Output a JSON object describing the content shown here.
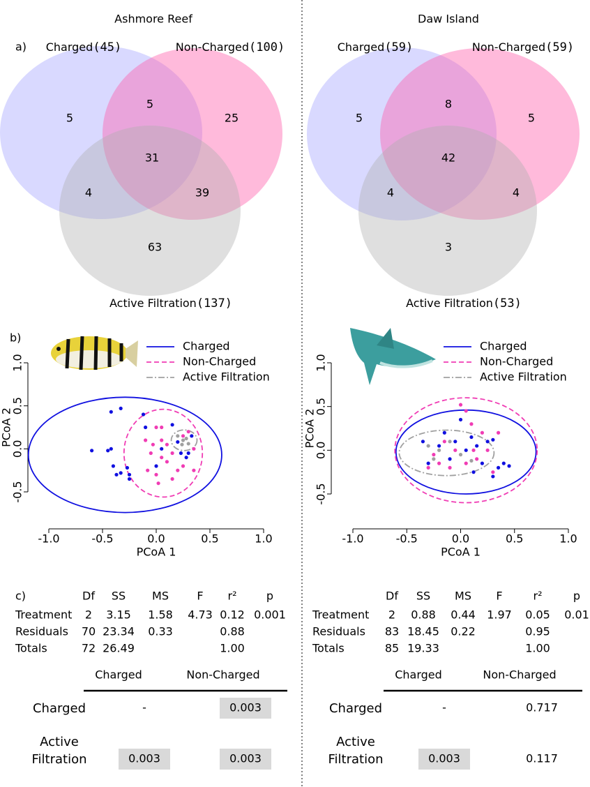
{
  "panel_labels": [
    "a)",
    "b)",
    "c)"
  ],
  "sites": [
    {
      "title": "Ashmore Reef",
      "venn": {
        "sets": [
          {
            "name": "Charged",
            "count": "(45)",
            "color": "rgba(160,160,255,0.40)"
          },
          {
            "name": "Non-Charged",
            "count": "(100)",
            "color": "rgba(255,90,170,0.42)"
          },
          {
            "name": "Active Filtration",
            "count": "(137)",
            "color": "rgba(175,175,175,0.40)"
          }
        ],
        "regions": [
          5,
          5,
          25,
          31,
          4,
          39,
          63
        ]
      },
      "pcoa": {
        "type": "scatter",
        "xlabel": "PCoA 1",
        "ylabel": "PCoA 2",
        "xlim": [
          -1,
          1
        ],
        "ylim": [
          -0.5,
          1
        ],
        "xticks": [
          {
            "value": -1,
            "label": "-1.0"
          },
          -0.5,
          {
            "value": 0,
            "label": "0.0"
          },
          0.5,
          {
            "value": 1,
            "label": "1.0"
          }
        ],
        "yticks": [
          -0.5,
          {
            "value": 0,
            "label": "0.0"
          },
          0.5,
          {
            "value": 1,
            "label": "1.0"
          }
        ],
        "legend": "top-right",
        "series": [
          {
            "name": "Charged",
            "color": "#1010e0",
            "dash": "solid",
            "x": [
              -0.6,
              -0.45,
              -0.42,
              -0.42,
              -0.33,
              -0.4,
              -0.37,
              -0.33,
              -0.27,
              -0.25,
              -0.25,
              -0.12,
              -0.1,
              0.05,
              0.15,
              0.2,
              0.23,
              0.28,
              0.3,
              0.33,
              0.0
            ],
            "y": [
              -0.02,
              -0.02,
              0.0,
              0.43,
              0.47,
              -0.2,
              -0.3,
              -0.28,
              -0.22,
              -0.3,
              -0.35,
              0.4,
              0.25,
              0.0,
              0.28,
              0.08,
              -0.05,
              -0.1,
              -0.05,
              0.15,
              -0.2
            ],
            "ellipse": {
              "center": [
                -0.29,
                -0.07
              ],
              "radii": [
                0.9,
                0.67
              ]
            }
          },
          {
            "name": "Non-Charged",
            "color": "#f03cb4",
            "dash": "dashed",
            "x": [
              -0.1,
              -0.05,
              -0.08,
              0.0,
              0.05,
              0.05,
              0.05,
              0.0,
              0.1,
              0.1,
              0.15,
              0.15,
              0.2,
              0.25,
              0.25,
              0.3,
              0.35,
              0.35,
              -0.03,
              0.02
            ],
            "y": [
              0.1,
              -0.05,
              -0.25,
              0.25,
              0.25,
              0.1,
              -0.1,
              -0.3,
              -0.15,
              0.05,
              -0.35,
              -0.05,
              -0.25,
              0.15,
              -0.2,
              0.2,
              -0.25,
              0.0,
              0.05,
              -0.4
            ],
            "ellipse": {
              "center": [
                0.065,
                -0.05
              ],
              "radii": [
                0.365,
                0.51
              ]
            }
          },
          {
            "name": "Active Filtration",
            "color": "#a0a0a0",
            "dash": "dashdot",
            "x": [
              0.2,
              0.25,
              0.28,
              0.3,
              0.24
            ],
            "y": [
              0.15,
              0.1,
              0.12,
              0.06,
              0.05
            ],
            "ellipse": {
              "center": [
                0.26,
                0.1
              ],
              "radii": [
                0.12,
                0.12
              ]
            }
          }
        ]
      },
      "permanova": {
        "columns": [
          "Df",
          "SS",
          "MS",
          "F",
          "r²",
          "p"
        ],
        "rows": [
          [
            "Treatment",
            "2",
            "3.15",
            "1.58",
            "4.73",
            "0.12",
            "0.001"
          ],
          [
            "Residuals",
            "70",
            "23.34",
            "0.33",
            "",
            "0.88",
            ""
          ],
          [
            "Totals",
            "72",
            "26.49",
            "",
            "",
            "1.00",
            ""
          ]
        ]
      },
      "pairwise": {
        "columns": [
          "Charged",
          "Non-Charged"
        ],
        "rows": [
          {
            "label": "Charged",
            "values": [
              "-",
              "0.003"
            ],
            "shaded": [
              false,
              true
            ]
          },
          {
            "label": "Active Filtration",
            "values": [
              "0.003",
              "0.003"
            ],
            "shaded": [
              true,
              true
            ]
          }
        ]
      }
    },
    {
      "title": "Daw Island",
      "venn": {
        "sets": [
          {
            "name": "Charged",
            "count": "(59)",
            "color": "rgba(160,160,255,0.40)"
          },
          {
            "name": "Non-Charged",
            "count": "(59)",
            "color": "rgba(255,90,170,0.42)"
          },
          {
            "name": "Active Filtration",
            "count": "(53)",
            "color": "rgba(175,175,175,0.40)"
          }
        ],
        "regions": [
          5,
          8,
          5,
          42,
          4,
          4,
          3
        ]
      },
      "pcoa": {
        "type": "scatter",
        "xlabel": "PCoA 1",
        "ylabel": "PCoA 2",
        "xlim": [
          -1,
          1
        ],
        "ylim": [
          -0.5,
          1
        ],
        "xticks": [
          {
            "value": -1,
            "label": "-1.0"
          },
          -0.5,
          {
            "value": 0,
            "label": "0.0"
          },
          0.5,
          {
            "value": 1,
            "label": "1.0"
          }
        ],
        "yticks": [
          -0.5,
          {
            "value": 0,
            "label": "0.0"
          },
          0.5,
          {
            "value": 1,
            "label": "1.0"
          }
        ],
        "legend": "top-right",
        "series": [
          {
            "name": "Charged",
            "color": "#1010e0",
            "dash": "solid",
            "x": [
              -0.3,
              -0.2,
              -0.15,
              -0.1,
              -0.05,
              0.0,
              0.05,
              0.1,
              0.12,
              0.15,
              0.2,
              0.25,
              0.3,
              0.35,
              0.4,
              0.45,
              0.3,
              -0.35
            ],
            "y": [
              -0.15,
              0.05,
              0.2,
              -0.1,
              0.1,
              0.35,
              0.0,
              0.15,
              -0.25,
              0.05,
              -0.15,
              0.1,
              0.12,
              -0.2,
              -0.15,
              -0.18,
              -0.3,
              0.1
            ],
            "ellipse": {
              "center": [
                0.05,
                -0.02
              ],
              "radii": [
                0.65,
                0.48
              ]
            }
          },
          {
            "name": "Non-Charged",
            "color": "#f03cb4",
            "dash": "dashed",
            "x": [
              -0.3,
              -0.25,
              -0.2,
              -0.15,
              -0.1,
              0.0,
              0.05,
              0.1,
              0.12,
              0.15,
              0.2,
              0.25,
              0.3,
              -0.05,
              0.05,
              0.35
            ],
            "y": [
              -0.2,
              -0.05,
              -0.15,
              0.1,
              -0.2,
              0.52,
              0.45,
              0.3,
              0.0,
              -0.1,
              0.2,
              0.0,
              -0.25,
              0.0,
              -0.15,
              0.2
            ],
            "ellipse": {
              "center": [
                0.05,
                0.0
              ],
              "radii": [
                0.66,
                0.6
              ]
            }
          },
          {
            "name": "Active Filtration",
            "color": "#a0a0a0",
            "dash": "dashdot",
            "x": [
              -0.3,
              -0.2,
              -0.1,
              0.0,
              -0.25,
              0.1
            ],
            "y": [
              0.05,
              0.0,
              0.1,
              -0.05,
              -0.1,
              -0.12
            ],
            "ellipse": {
              "center": [
                -0.13,
                -0.03
              ],
              "radii": [
                0.44,
                0.26
              ]
            }
          }
        ]
      },
      "permanova": {
        "columns": [
          "Df",
          "SS",
          "MS",
          "F",
          "r²",
          "p"
        ],
        "rows": [
          [
            "Treatment",
            "2",
            "0.88",
            "0.44",
            "1.97",
            "0.05",
            "0.01"
          ],
          [
            "Residuals",
            "83",
            "18.45",
            "0.22",
            "",
            "0.95",
            ""
          ],
          [
            "Totals",
            "85",
            "19.33",
            "",
            "",
            "1.00",
            ""
          ]
        ]
      },
      "pairwise": {
        "columns": [
          "Charged",
          "Non-Charged"
        ],
        "rows": [
          {
            "label": "Charged",
            "values": [
              "-",
              "0.717"
            ],
            "shaded": [
              false,
              false
            ]
          },
          {
            "label": "Active Filtration",
            "values": [
              "0.003",
              "0.117"
            ],
            "shaded": [
              true,
              false
            ]
          }
        ]
      }
    }
  ]
}
